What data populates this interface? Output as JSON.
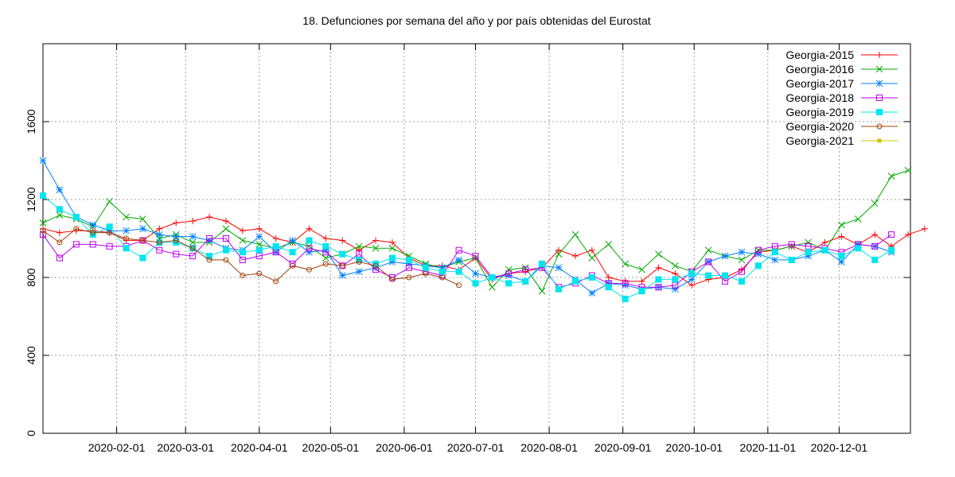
{
  "chart_data": {
    "type": "line",
    "title": "18. Defunciones por semana del año y por país obtenidas del Eurostat",
    "xlabel": "",
    "ylabel": "",
    "xlim": [
      "2020-01-01",
      "2020-12-31"
    ],
    "ylim": [
      0,
      2000
    ],
    "xticks": [
      "2020-02-01",
      "2020-03-01",
      "2020-04-01",
      "2020-05-01",
      "2020-06-01",
      "2020-07-01",
      "2020-08-01",
      "2020-09-01",
      "2020-10-01",
      "2020-11-01",
      "2020-12-01"
    ],
    "yticks": [
      0,
      400,
      800,
      1200,
      1600
    ],
    "grid": true,
    "legend_position": "top-right",
    "week_start_date": "2020-01-01",
    "week_spacing_days": 7,
    "series": [
      {
        "name": "Georgia-2015",
        "color": "#ff0000",
        "marker": "plus",
        "values": [
          1050,
          1030,
          1040,
          1040,
          1030,
          990,
          990,
          1050,
          1080,
          1090,
          1110,
          1090,
          1040,
          1050,
          1000,
          980,
          1050,
          1000,
          990,
          940,
          990,
          980,
          900,
          860,
          860,
          840,
          900,
          790,
          820,
          830,
          850,
          940,
          910,
          940,
          800,
          780,
          780,
          850,
          820,
          760,
          790,
          800,
          840,
          930,
          940,
          960,
          930,
          980,
          1010,
          970,
          1020,
          960,
          1020,
          1050
        ]
      },
      {
        "name": "Georgia-2016",
        "color": "#00aa00",
        "marker": "x",
        "values": [
          1080,
          1120,
          1100,
          1060,
          1190,
          1110,
          1100,
          1000,
          1020,
          980,
          980,
          1050,
          990,
          970,
          950,
          980,
          960,
          900,
          920,
          960,
          950,
          950,
          910,
          870,
          850,
          880,
          900,
          750,
          840,
          850,
          730,
          920,
          1020,
          900,
          970,
          870,
          840,
          920,
          860,
          830,
          940,
          910,
          890,
          940,
          940,
          960,
          980,
          940,
          1070,
          1100,
          1180,
          1320,
          1350
        ]
      },
      {
        "name": "Georgia-2017",
        "color": "#0080ff",
        "marker": "star",
        "values": [
          1400,
          1250,
          1110,
          1070,
          1040,
          1040,
          1050,
          1020,
          1010,
          1010,
          990,
          950,
          940,
          1010,
          930,
          990,
          930,
          940,
          810,
          830,
          850,
          880,
          870,
          860,
          850,
          890,
          820,
          800,
          810,
          780,
          860,
          850,
          790,
          720,
          770,
          760,
          740,
          750,
          740,
          790,
          880,
          910,
          930,
          920,
          890,
          890,
          910,
          940,
          880,
          970,
          960,
          930
        ]
      },
      {
        "name": "Georgia-2018",
        "color": "#bb00ee",
        "marker": "square-open",
        "values": [
          1020,
          900,
          970,
          970,
          960,
          960,
          990,
          940,
          920,
          910,
          1000,
          1000,
          890,
          910,
          930,
          870,
          950,
          930,
          860,
          920,
          840,
          800,
          850,
          830,
          810,
          940,
          910,
          800,
          820,
          840,
          850,
          750,
          770,
          810,
          770,
          770,
          750,
          750,
          760,
          830,
          880,
          780,
          830,
          940,
          960,
          970,
          960,
          950,
          930,
          970,
          960,
          1020
        ]
      },
      {
        "name": "Georgia-2019",
        "color": "#00e5ee",
        "marker": "square-filled",
        "values": [
          1220,
          1150,
          1110,
          1020,
          1060,
          950,
          900,
          980,
          980,
          950,
          910,
          940,
          930,
          940,
          960,
          930,
          990,
          960,
          920,
          890,
          870,
          900,
          890,
          850,
          830,
          830,
          770,
          800,
          770,
          780,
          870,
          740,
          780,
          800,
          750,
          690,
          730,
          790,
          790,
          820,
          810,
          810,
          780,
          860,
          930,
          890,
          930,
          940,
          910,
          950,
          890,
          940
        ]
      },
      {
        "name": "Georgia-2020",
        "color": "#a0400a",
        "marker": "circle-open",
        "values": [
          1040,
          980,
          1050,
          1030,
          1030,
          1000,
          990,
          980,
          990,
          950,
          890,
          890,
          810,
          820,
          780,
          860,
          840,
          870,
          860,
          880,
          860,
          790,
          800,
          820,
          800,
          760
        ]
      },
      {
        "name": "Georgia-2021",
        "color": "#c8c800",
        "marker": "dot",
        "values": []
      }
    ]
  }
}
